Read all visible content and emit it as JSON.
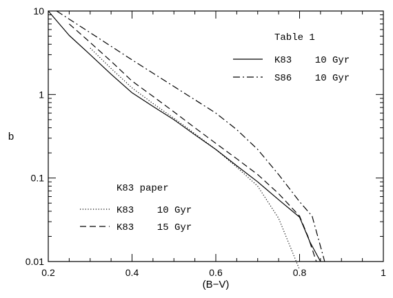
{
  "chart_data": {
    "type": "line",
    "xlabel": "(B−V)",
    "ylabel": "b",
    "xlim": [
      0.2,
      1.0
    ],
    "ylim": [
      0.01,
      10
    ],
    "yscale": "log",
    "x_ticks": [
      0.2,
      0.4,
      0.6,
      0.8,
      1.0
    ],
    "x_tick_labels": [
      "0.2",
      "0.4",
      "0.6",
      "0.8",
      "1"
    ],
    "y_ticks": [
      0.01,
      0.1,
      1,
      10
    ],
    "y_tick_labels": [
      "0.01",
      "0.1",
      "1",
      "10"
    ],
    "grid": false,
    "legends": [
      {
        "title": "Table 1",
        "placement": "top-right",
        "entries": [
          {
            "series": 0,
            "label": "K83    10 Gyr"
          },
          {
            "series": 1,
            "label": "S86    10 Gyr"
          }
        ]
      },
      {
        "title": "K83 paper",
        "placement": "bottom-left",
        "entries": [
          {
            "series": 2,
            "label": "K83    10 Gyr"
          },
          {
            "series": 3,
            "label": "K83    15 Gyr"
          }
        ]
      }
    ],
    "series": [
      {
        "style": "solid",
        "x": [
          0.2,
          0.25,
          0.3,
          0.35,
          0.4,
          0.45,
          0.5,
          0.55,
          0.6,
          0.65,
          0.7,
          0.75,
          0.8,
          0.825,
          0.85
        ],
        "y": [
          10,
          5.1,
          3.0,
          1.75,
          1.05,
          0.72,
          0.5,
          0.33,
          0.22,
          0.14,
          0.09,
          0.055,
          0.034,
          0.017,
          0.01
        ]
      },
      {
        "style": "dashdot",
        "x": [
          0.22,
          0.3,
          0.4,
          0.5,
          0.6,
          0.65,
          0.7,
          0.75,
          0.8,
          0.83,
          0.86
        ],
        "y": [
          10,
          5.5,
          2.6,
          1.25,
          0.6,
          0.38,
          0.22,
          0.11,
          0.052,
          0.035,
          0.01
        ]
      },
      {
        "style": "dotted",
        "x": [
          0.3,
          0.35,
          0.4,
          0.45,
          0.5,
          0.55,
          0.6,
          0.65,
          0.7,
          0.75,
          0.8
        ],
        "y": [
          3.6,
          2.05,
          1.2,
          0.78,
          0.52,
          0.34,
          0.22,
          0.135,
          0.08,
          0.033,
          0.008
        ]
      },
      {
        "style": "dashed",
        "x": [
          0.25,
          0.3,
          0.35,
          0.4,
          0.45,
          0.5,
          0.55,
          0.6,
          0.65,
          0.7,
          0.75,
          0.8,
          0.82,
          0.84
        ],
        "y": [
          7.0,
          4.2,
          2.5,
          1.45,
          0.95,
          0.62,
          0.4,
          0.26,
          0.17,
          0.11,
          0.065,
          0.035,
          0.02,
          0.01
        ]
      }
    ]
  }
}
